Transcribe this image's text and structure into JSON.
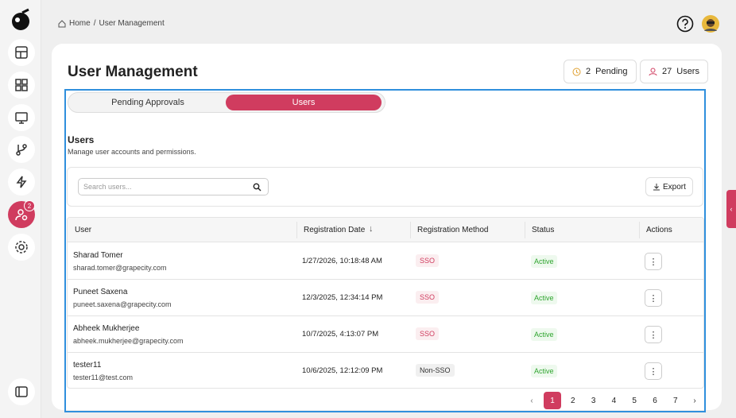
{
  "breadcrumb": {
    "home": "Home",
    "separator": "/",
    "current": "User Management"
  },
  "sidebar": {
    "badge": 2
  },
  "header": {
    "title": "User Management",
    "pending": {
      "count": 2,
      "label": "Pending"
    },
    "users": {
      "count": 27,
      "label": "Users"
    }
  },
  "tabs": [
    "Pending Approvals",
    "Users"
  ],
  "section": {
    "title": "Users",
    "subtitle": "Manage user accounts and permissions."
  },
  "search": {
    "placeholder": "Search users..."
  },
  "export": "Export",
  "table": {
    "columns": [
      "User",
      "Registration Date",
      "Registration Method",
      "Status",
      "Actions"
    ],
    "rows": [
      {
        "name": "Sharad Tomer",
        "email": "sharad.tomer@grapecity.com",
        "date": "1/27/2026, 10:18:48 AM",
        "method": "SSO",
        "status": "Active"
      },
      {
        "name": "Puneet Saxena",
        "email": "puneet.saxena@grapecity.com",
        "date": "12/3/2025, 12:34:14 PM",
        "method": "SSO",
        "status": "Active"
      },
      {
        "name": "Abheek Mukherjee",
        "email": "abheek.mukherjee@grapecity.com",
        "date": "10/7/2025, 4:13:07 PM",
        "method": "SSO",
        "status": "Active"
      },
      {
        "name": "tester11",
        "email": "tester11@test.com",
        "date": "10/6/2025, 12:12:09 PM",
        "method": "Non-SSO",
        "status": "Active"
      }
    ]
  },
  "pagination": {
    "pages": [
      1,
      2,
      3,
      4,
      5,
      6,
      7
    ]
  }
}
